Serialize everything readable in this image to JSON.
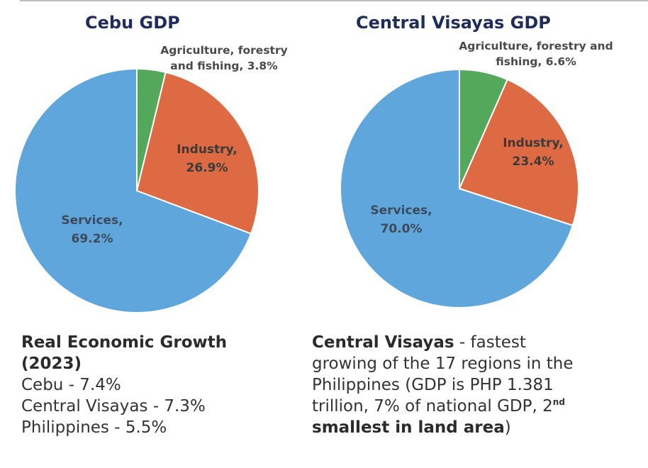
{
  "chart_data": [
    {
      "type": "pie",
      "title": "Cebu GDP",
      "series": [
        {
          "label_lines": [
            "Agriculture, forestry",
            "and fishing, 3.8%"
          ],
          "value": 3.8,
          "color": "#53a85b"
        },
        {
          "label_lines": [
            "Industry,",
            "26.9%"
          ],
          "value": 26.9,
          "color": "#de6a43"
        },
        {
          "label_lines": [
            "Services,",
            "69.2%"
          ],
          "value": 69.2,
          "color": "#5ea6dc"
        }
      ]
    },
    {
      "type": "pie",
      "title": "Central Visayas GDP",
      "series": [
        {
          "label_lines": [
            "Agriculture, forestry and",
            "fishing, 6.6%"
          ],
          "value": 6.6,
          "color": "#53a85b"
        },
        {
          "label_lines": [
            "Industry,",
            "23.4%"
          ],
          "value": 23.4,
          "color": "#de6a43"
        },
        {
          "label_lines": [
            "Services,",
            "70.0%"
          ],
          "value": 70.0,
          "color": "#5ea6dc"
        }
      ]
    }
  ],
  "notes_left": {
    "heading_line1": "Real Economic Growth",
    "heading_line2": "(2023)",
    "lines": [
      "Cebu - 7.4%",
      "Central Visayas - 7.3%",
      "Philippines - 5.5%"
    ]
  },
  "notes_right": {
    "bold_lead": "Central Visayas",
    "line1_rest": " - fastest",
    "line2": "growing of the 17 regions in the",
    "line3": "Philippines (GDP is PHP 1.381",
    "line4_a": "trillion, 7% of national GDP, 2",
    "line4_sup": "nd",
    "line5_bold": "smallest in land area",
    "line5_end": ")"
  }
}
